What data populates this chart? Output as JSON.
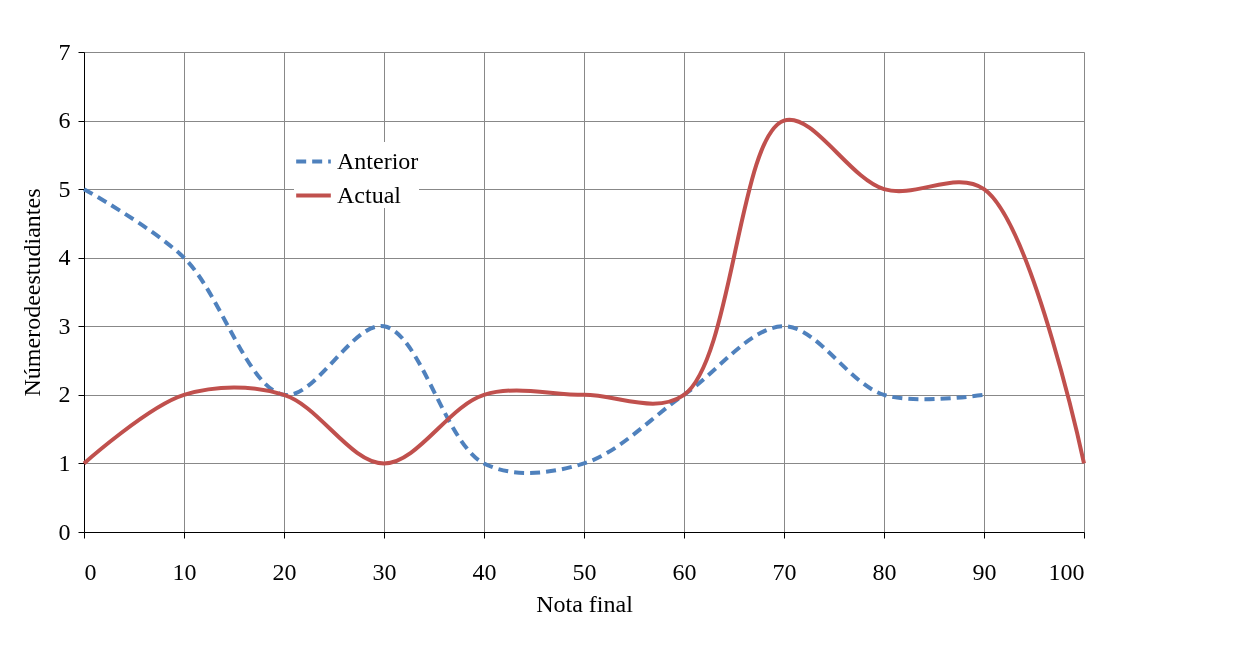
{
  "chart_data": {
    "type": "line",
    "xlabel": "Nota final",
    "ylabel": "Númerodeestudiantes",
    "xlim": [
      0,
      100
    ],
    "xticks": [
      0,
      10,
      20,
      30,
      40,
      50,
      60,
      70,
      80,
      90,
      100
    ],
    "ylim": [
      0,
      7
    ],
    "yticks": [
      0,
      1,
      2,
      3,
      4,
      5,
      6,
      7
    ],
    "grid": true,
    "legend": "top left",
    "marker": "none",
    "series": [
      {
        "name": "Anterior",
        "color": "#4f81bd",
        "line_style": "dashed",
        "x": [
          0,
          10,
          20,
          30,
          40,
          50,
          60,
          70,
          80,
          90
        ],
        "values": [
          5,
          4,
          2,
          3,
          1,
          1,
          2,
          3,
          2,
          2
        ]
      },
      {
        "name": "Actual",
        "color": "#c0504d",
        "line_style": "solid",
        "x": [
          0,
          10,
          20,
          30,
          40,
          50,
          60,
          70,
          80,
          90,
          100
        ],
        "values": [
          1,
          2,
          2,
          1,
          2,
          2,
          2,
          6,
          5,
          5,
          1
        ]
      }
    ]
  }
}
